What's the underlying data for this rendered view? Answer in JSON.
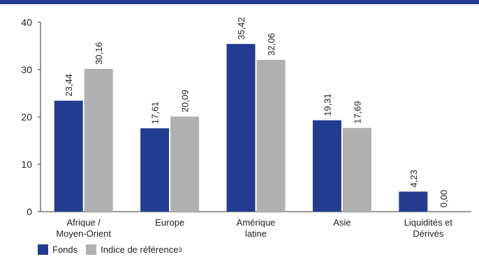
{
  "chart_data": {
    "type": "bar",
    "title": "",
    "xlabel": "",
    "ylabel": "",
    "ylim": [
      0,
      40
    ],
    "yticks": [
      "0",
      "10",
      "20",
      "30",
      "40"
    ],
    "grid": false,
    "legend_position": "bottom-left",
    "categories": [
      [
        "Afrique /",
        "Moyen-Orient"
      ],
      [
        "Europe"
      ],
      [
        "Amérique",
        "latine"
      ],
      [
        "Asie"
      ],
      [
        "Liquidités et",
        "Dérivés"
      ]
    ],
    "series": [
      {
        "name": "Fonds",
        "color": "#243c8f",
        "values": [
          23.44,
          17.61,
          35.42,
          19.31,
          4.23
        ],
        "labels": [
          "23,44",
          "17,61",
          "35,42",
          "19,31",
          "4,23"
        ]
      },
      {
        "name": "Indice de référence",
        "name_sup": "3",
        "color": "#b0b0b0",
        "values": [
          30.16,
          20.09,
          32.06,
          17.69,
          0.0
        ],
        "labels": [
          "30,16",
          "20,09",
          "32,06",
          "17,69",
          "0,00"
        ]
      }
    ]
  }
}
